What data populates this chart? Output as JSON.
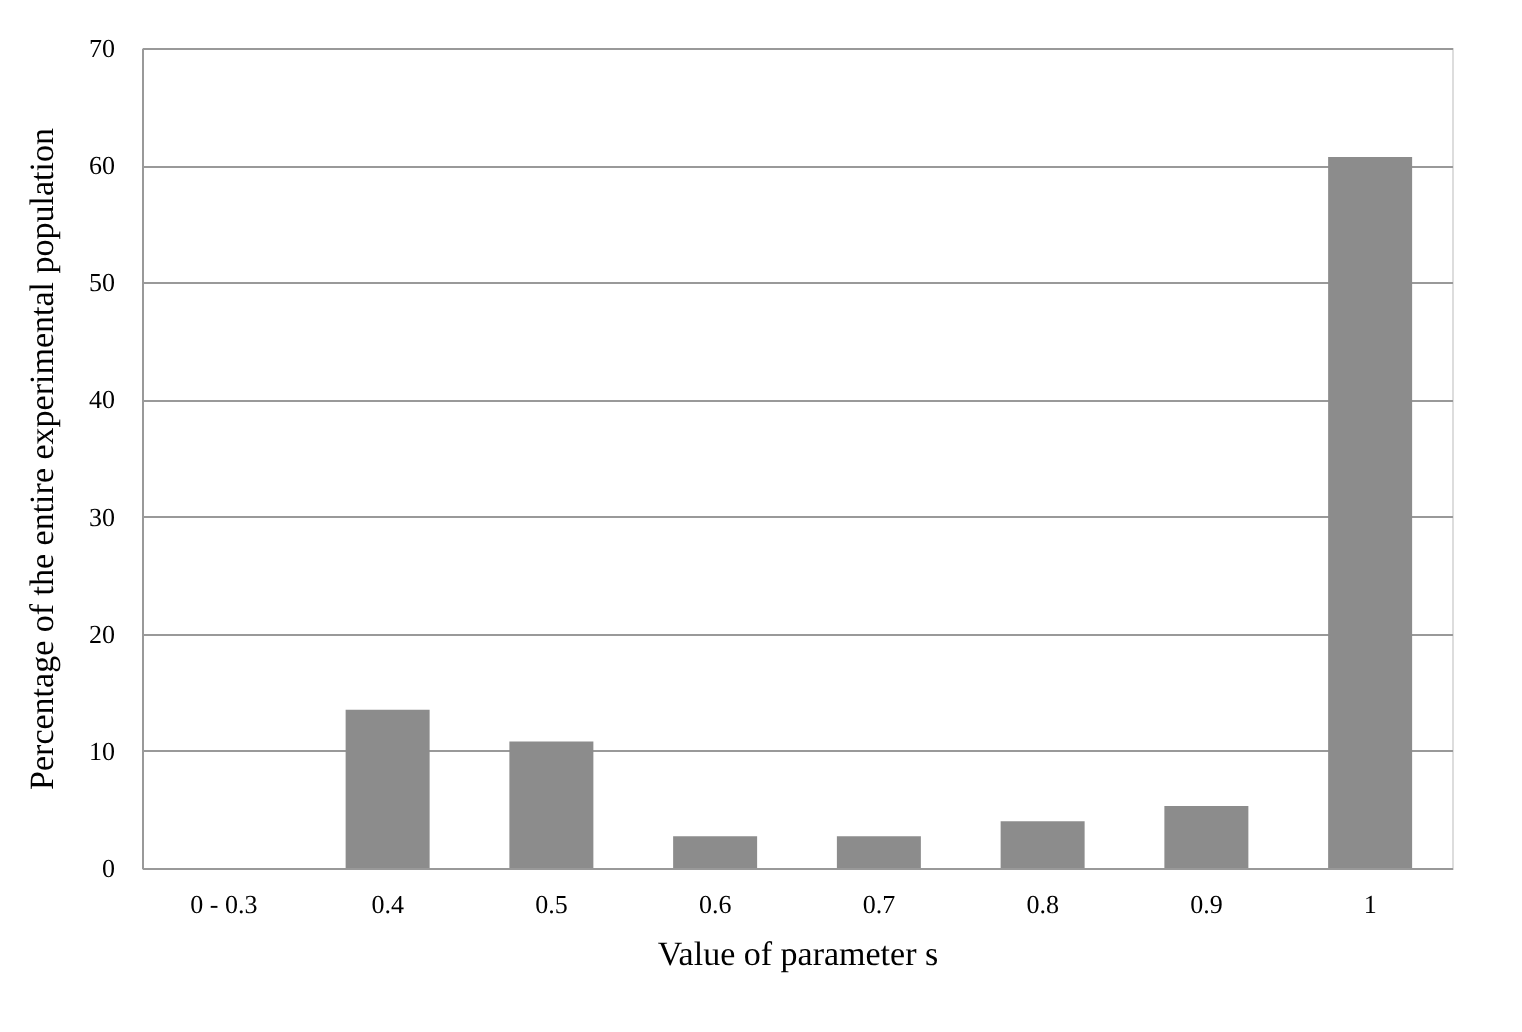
{
  "chart_data": {
    "type": "bar",
    "xlabel": "Value of parameter s",
    "ylabel": "Percentage of the entire experimental population",
    "categories": [
      "0 - 0.3",
      "0.4",
      "0.5",
      "0.6",
      "0.7",
      "0.8",
      "0.9",
      "1"
    ],
    "values": [
      0,
      13.5,
      10.8,
      2.7,
      2.7,
      4.0,
      5.3,
      60.7
    ],
    "color": "#8c8c8c",
    "ylim": [
      0,
      70
    ],
    "yticks": [
      0,
      10,
      20,
      30,
      40,
      50,
      60,
      70
    ],
    "grid": "y"
  }
}
